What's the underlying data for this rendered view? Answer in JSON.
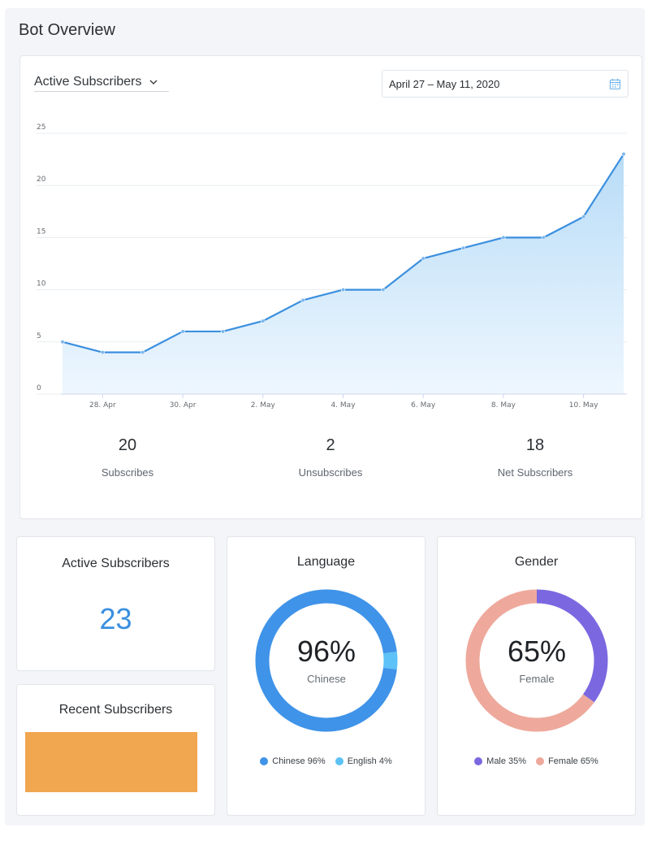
{
  "page": {
    "title": "Bot Overview"
  },
  "main_card": {
    "metric_select": {
      "label": "Active Subscribers"
    },
    "date_range": {
      "value": "April 27 – May 11, 2020"
    },
    "stats": [
      {
        "value": "20",
        "label": "Subscribes"
      },
      {
        "value": "2",
        "label": "Unsubscribes"
      },
      {
        "value": "18",
        "label": "Net Subscribers"
      }
    ]
  },
  "chart_data": {
    "type": "area",
    "title": "",
    "xlabel": "",
    "ylabel": "",
    "x": [
      "2020-04-27",
      "2020-04-28",
      "2020-04-29",
      "2020-04-30",
      "2020-05-01",
      "2020-05-02",
      "2020-05-03",
      "2020-05-04",
      "2020-05-05",
      "2020-05-06",
      "2020-05-07",
      "2020-05-08",
      "2020-05-09",
      "2020-05-10",
      "2020-05-11"
    ],
    "values": [
      5,
      4,
      4,
      6,
      6,
      7,
      9,
      10,
      10,
      13,
      14,
      15,
      15,
      17,
      23
    ],
    "x_tick_labels": [
      {
        "x": "2020-04-28",
        "label": "28. Apr"
      },
      {
        "x": "2020-04-30",
        "label": "30. Apr"
      },
      {
        "x": "2020-05-02",
        "label": "2. May"
      },
      {
        "x": "2020-05-04",
        "label": "4. May"
      },
      {
        "x": "2020-05-06",
        "label": "6. May"
      },
      {
        "x": "2020-05-08",
        "label": "8. May"
      },
      {
        "x": "2020-05-10",
        "label": "10. May"
      }
    ],
    "y_ticks": [
      0,
      5,
      10,
      15,
      20,
      25
    ],
    "ylim": [
      0,
      25
    ],
    "grid": true,
    "legend": "none",
    "colors": {
      "line": "#3b8fdf",
      "fill_top": "#b8dcf7",
      "fill_bottom": "#eef7fe"
    }
  },
  "active_subscribers": {
    "title": "Active Subscribers",
    "value": "23",
    "color": "#3a8fe0"
  },
  "recent_subscribers": {
    "title": "Recent Subscribers",
    "block_color": "#f1a650"
  },
  "language": {
    "title": "Language",
    "center_value": "96%",
    "center_label": "Chinese",
    "slices": [
      {
        "label": "Chinese 96%",
        "value": 96,
        "color": "#3f93e8"
      },
      {
        "label": "English 4%",
        "value": 4,
        "color": "#5cc2f7"
      }
    ]
  },
  "gender": {
    "title": "Gender",
    "center_value": "65%",
    "center_label": "Female",
    "slices": [
      {
        "label": "Male 35%",
        "value": 35,
        "color": "#7b68e0"
      },
      {
        "label": "Female 65%",
        "value": 65,
        "color": "#eea99c"
      }
    ]
  }
}
